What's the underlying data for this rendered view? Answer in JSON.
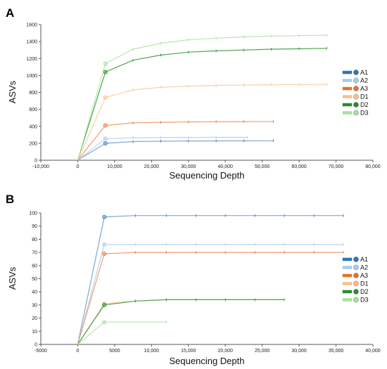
{
  "chart_data": [
    {
      "type": "line",
      "panel_label": "A",
      "xlabel": "Sequencing Depth",
      "ylabel": "ASVs",
      "xlim": [
        -10000,
        80000
      ],
      "ylim": [
        0,
        1600
      ],
      "x_ticks": [
        "-10,000",
        "0",
        "10,000",
        "20,000",
        "30,000",
        "40,000",
        "50,000",
        "60,000",
        "70,000",
        "80,000"
      ],
      "y_ticks": [
        "0",
        "200",
        "400",
        "600",
        "800",
        "1000",
        "1200",
        "1400",
        "1600"
      ],
      "legend_position": "right",
      "series": [
        {
          "name": "A1",
          "color": "#2f74b5",
          "line": "#7fa8d6",
          "x": [
            0,
            7500,
            15000,
            22500,
            30000,
            37500,
            45000,
            53000
          ],
          "y": [
            0,
            200,
            220,
            225,
            227,
            228,
            229,
            230
          ]
        },
        {
          "name": "A2",
          "color": "#aecbe8",
          "line": "#b9d3ee",
          "x": [
            0,
            7500,
            15000,
            22500,
            30000,
            37500,
            46000
          ],
          "y": [
            0,
            255,
            265,
            268,
            269,
            270,
            270
          ]
        },
        {
          "name": "A3",
          "color": "#e8722a",
          "line": "#f0a070",
          "x": [
            0,
            7500,
            15000,
            22500,
            30000,
            37500,
            45000,
            53000
          ],
          "y": [
            0,
            410,
            440,
            448,
            452,
            455,
            456,
            457
          ]
        },
        {
          "name": "D1",
          "color": "#f8c090",
          "line": "#fad0a8",
          "x": [
            0,
            7500,
            15000,
            22500,
            30000,
            37500,
            45000,
            52500,
            60000,
            67500
          ],
          "y": [
            0,
            740,
            830,
            860,
            875,
            882,
            887,
            890,
            893,
            895
          ]
        },
        {
          "name": "D2",
          "color": "#2e8b2e",
          "line": "#4aa64a",
          "x": [
            0,
            7500,
            15000,
            22500,
            30000,
            37500,
            45000,
            52500,
            60000,
            67500
          ],
          "y": [
            0,
            1040,
            1180,
            1240,
            1275,
            1290,
            1300,
            1310,
            1315,
            1320
          ]
        },
        {
          "name": "D3",
          "color": "#a8e0a0",
          "line": "#b8e8b0",
          "x": [
            0,
            7500,
            15000,
            22500,
            30000,
            37500,
            45000,
            52500,
            60000,
            67500
          ],
          "y": [
            0,
            1140,
            1310,
            1380,
            1420,
            1440,
            1455,
            1465,
            1470,
            1475
          ]
        }
      ]
    },
    {
      "type": "line",
      "panel_label": "B",
      "xlabel": "Sequencing Depth",
      "ylabel": "ASVs",
      "xlim": [
        -5000,
        40000
      ],
      "ylim": [
        0,
        100
      ],
      "x_ticks": [
        "-5000",
        "0",
        "5000",
        "10,000",
        "15,000",
        "20,000",
        "25,000",
        "30,000",
        "35,000",
        "40,000"
      ],
      "y_ticks": [
        "0",
        "10",
        "20",
        "30",
        "40",
        "50",
        "60",
        "70",
        "80",
        "90",
        "100"
      ],
      "legend_position": "right",
      "series": [
        {
          "name": "A1",
          "color": "#2f74b5",
          "line": "#7fa8d6",
          "x": [
            0,
            3600,
            7800,
            12000,
            16000,
            20000,
            24000,
            28000,
            32000,
            36000
          ],
          "y": [
            0,
            97,
            98,
            98,
            98,
            98,
            98,
            98,
            98,
            98
          ]
        },
        {
          "name": "A2",
          "color": "#aecbe8",
          "line": "#b9d3ee",
          "x": [
            0,
            3600,
            7800,
            12000,
            16000,
            20000,
            24000,
            28000,
            32000,
            36000
          ],
          "y": [
            0,
            76,
            76,
            76,
            76,
            76,
            76,
            76,
            76,
            76
          ]
        },
        {
          "name": "A3",
          "color": "#e8722a",
          "line": "#f0a070",
          "x": [
            0,
            3600,
            7800,
            12000,
            16000,
            20000,
            24000,
            28000,
            32000,
            36000
          ],
          "y": [
            0,
            69,
            70,
            70,
            70,
            70,
            70,
            70,
            70,
            70
          ]
        },
        {
          "name": "D1",
          "color": "#f8c090",
          "line": "#fad0a8",
          "x": [
            0,
            3600,
            7800,
            12000,
            16000,
            20000,
            24000,
            28000
          ],
          "y": [
            0,
            31,
            33,
            34,
            34,
            34,
            34,
            34
          ]
        },
        {
          "name": "D2",
          "color": "#2e8b2e",
          "line": "#4aa64a",
          "x": [
            0,
            3600,
            7800,
            12000,
            16000,
            20000,
            24000,
            28000
          ],
          "y": [
            0,
            30,
            33,
            34,
            34,
            34,
            34,
            34
          ]
        },
        {
          "name": "D3",
          "color": "#a8e0a0",
          "line": "#b8e8b0",
          "x": [
            0,
            3600,
            12000
          ],
          "y": [
            0,
            17,
            17
          ]
        }
      ]
    }
  ]
}
